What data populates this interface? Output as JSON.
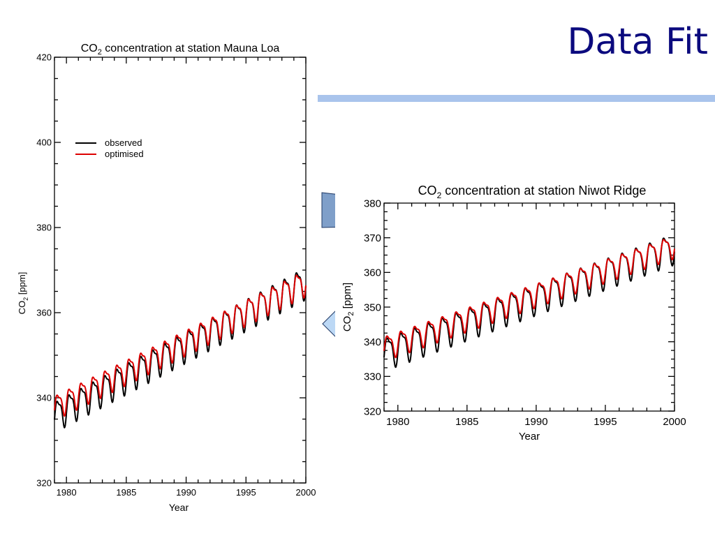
{
  "slide": {
    "title": "Data Fit",
    "accent_color": "#a9c4ec",
    "title_color": "#0b0a7e"
  },
  "chart_data": [
    {
      "type": "line",
      "title": "CO2 concentration at station Mauna Loa",
      "title_main": "CO",
      "title_sub": "2",
      "title_rest": " concentration at station Mauna Loa",
      "xlabel": "Year",
      "ylabel_main": "CO",
      "ylabel_sub": "2",
      "ylabel_rest": " [ppm]",
      "xlim": [
        1979,
        2000
      ],
      "ylim": [
        320,
        420
      ],
      "xticks": [
        1980,
        1985,
        1990,
        1995,
        2000
      ],
      "yticks": [
        320,
        340,
        360,
        380,
        400,
        420
      ],
      "legend_position": "upper-left",
      "grid": false,
      "series": [
        {
          "name": "observed",
          "color": "#000000",
          "base_1979": 336.0,
          "trend_per_year": 1.5,
          "amp_start": 3.2,
          "amp_end": 3.4
        },
        {
          "name": "optimised",
          "color": "#dd0000",
          "base_1979": 338.0,
          "trend_per_year": 1.4,
          "amp_start": 2.6,
          "amp_end": 2.8
        }
      ]
    },
    {
      "type": "line",
      "title": "CO2 concentration at station Niwot Ridge",
      "title_main": "CO",
      "title_sub": "2",
      "title_rest": " concentration at station Niwot Ridge",
      "xlabel": "Year",
      "ylabel_main": "CO",
      "ylabel_sub": "2",
      "ylabel_rest": " [ppm]",
      "xlim": [
        1979,
        2000
      ],
      "ylim": [
        320,
        380
      ],
      "xticks": [
        1980,
        1985,
        1990,
        1995,
        2000
      ],
      "yticks": [
        320,
        330,
        340,
        350,
        360,
        370,
        380
      ],
      "grid": false,
      "series": [
        {
          "name": "observed",
          "color": "#000000",
          "base_1979": 337.0,
          "trend_per_year": 1.45,
          "amp_start": 4.2,
          "amp_end": 4.0
        },
        {
          "name": "optimised",
          "color": "#dd0000",
          "base_1979": 338.5,
          "trend_per_year": 1.4,
          "amp_start": 3.2,
          "amp_end": 3.0
        }
      ]
    }
  ]
}
